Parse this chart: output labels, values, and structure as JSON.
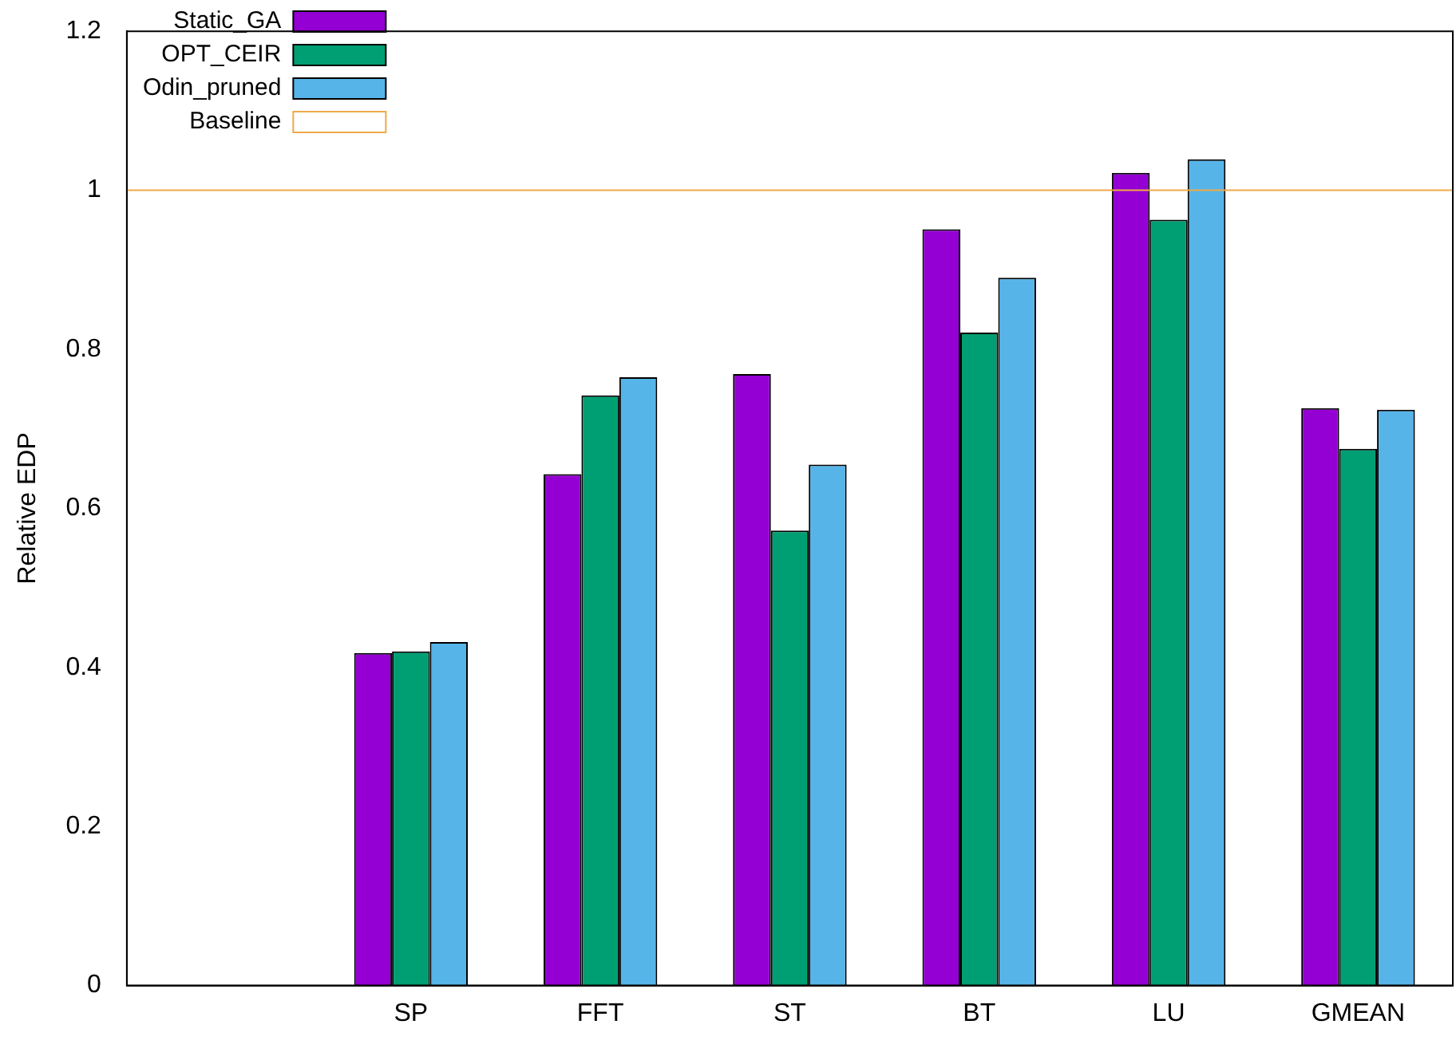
{
  "chart_data": {
    "type": "bar",
    "ylabel": "Relative EDP",
    "categories": [
      null,
      "SP",
      "FFT",
      "ST",
      "BT",
      "LU",
      "GMEAN"
    ],
    "series": [
      {
        "name": "Static_GA",
        "color": "#9400d3",
        "values": [
          null,
          0.418,
          0.643,
          0.769,
          0.951,
          1.022,
          0.726
        ]
      },
      {
        "name": "OPT_CEIR",
        "color": "#009e73",
        "values": [
          null,
          0.42,
          0.742,
          0.572,
          0.821,
          0.963,
          0.675
        ]
      },
      {
        "name": "Odin_pruned",
        "color": "#56b4e9",
        "values": [
          null,
          0.432,
          0.765,
          0.655,
          0.89,
          1.039,
          0.724
        ]
      }
    ],
    "ref_lines": [
      {
        "axis": "y",
        "value": 1,
        "label": "Baseline",
        "color": "#f0a848"
      }
    ],
    "ylim": [
      0,
      1.2
    ],
    "yticks": [
      0,
      0.2,
      0.4,
      0.6,
      0.8,
      1,
      1.2
    ],
    "grid": false,
    "legend": "top left"
  }
}
